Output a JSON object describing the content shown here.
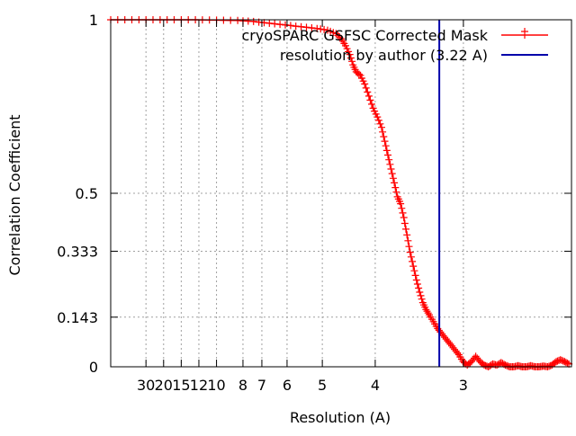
{
  "chart_data": {
    "type": "line",
    "xlabel": "Resolution (A)",
    "ylabel": "Correlation Coefficient",
    "x_scale": "reciprocal",
    "x_range_inv_angstrom": [
      0.0,
      0.4355
    ],
    "ylim": [
      0,
      1
    ],
    "grid": true,
    "legend_position": "top-right",
    "x_ticks": [
      {
        "resolution": 30,
        "label": "30"
      },
      {
        "resolution": 20,
        "label": "20"
      },
      {
        "resolution": 15,
        "label": "15"
      },
      {
        "resolution": 12,
        "label": "12"
      },
      {
        "resolution": 10,
        "label": "10"
      },
      {
        "resolution": 8,
        "label": "8"
      },
      {
        "resolution": 7,
        "label": "7"
      },
      {
        "resolution": 6,
        "label": "6"
      },
      {
        "resolution": 5,
        "label": "5"
      },
      {
        "resolution": 4,
        "label": "4"
      },
      {
        "resolution": 3,
        "label": "3"
      }
    ],
    "y_ticks": [
      {
        "value": 0,
        "label": "0"
      },
      {
        "value": 0.143,
        "label": "0.143"
      },
      {
        "value": 0.333,
        "label": "0.333"
      },
      {
        "value": 0.5,
        "label": "0.5"
      },
      {
        "value": 1,
        "label": "1"
      }
    ],
    "series": [
      {
        "name": "cryoSPARC GSFSC Corrected Mask",
        "color": "#ff0000",
        "marker": "plus",
        "x_unit": "1/A",
        "points": [
          [
            0.0,
            1.0
          ],
          [
            0.02,
            1.0
          ],
          [
            0.04,
            1.0
          ],
          [
            0.06,
            1.0
          ],
          [
            0.08,
            1.0
          ],
          [
            0.1,
            0.999
          ],
          [
            0.12,
            0.998
          ],
          [
            0.135,
            0.995
          ],
          [
            0.15,
            0.99
          ],
          [
            0.165,
            0.985
          ],
          [
            0.18,
            0.98
          ],
          [
            0.195,
            0.975
          ],
          [
            0.205,
            0.97
          ],
          [
            0.213,
            0.96
          ],
          [
            0.218,
            0.945
          ],
          [
            0.222,
            0.925
          ],
          [
            0.226,
            0.9
          ],
          [
            0.229,
            0.87
          ],
          [
            0.232,
            0.85
          ],
          [
            0.236,
            0.84
          ],
          [
            0.24,
            0.815
          ],
          [
            0.244,
            0.78
          ],
          [
            0.248,
            0.745
          ],
          [
            0.252,
            0.72
          ],
          [
            0.256,
            0.69
          ],
          [
            0.259,
            0.65
          ],
          [
            0.262,
            0.61
          ],
          [
            0.265,
            0.57
          ],
          [
            0.268,
            0.53
          ],
          [
            0.271,
            0.49
          ],
          [
            0.274,
            0.47
          ],
          [
            0.277,
            0.43
          ],
          [
            0.28,
            0.38
          ],
          [
            0.283,
            0.33
          ],
          [
            0.286,
            0.29
          ],
          [
            0.289,
            0.25
          ],
          [
            0.292,
            0.215
          ],
          [
            0.295,
            0.185
          ],
          [
            0.298,
            0.165
          ],
          [
            0.301,
            0.15
          ],
          [
            0.305,
            0.13
          ],
          [
            0.309,
            0.11
          ],
          [
            0.313,
            0.095
          ],
          [
            0.317,
            0.08
          ],
          [
            0.321,
            0.065
          ],
          [
            0.325,
            0.05
          ],
          [
            0.329,
            0.035
          ],
          [
            0.333,
            0.015
          ],
          [
            0.337,
            0.005
          ],
          [
            0.341,
            0.015
          ],
          [
            0.345,
            0.03
          ],
          [
            0.349,
            0.015
          ],
          [
            0.353,
            0.005
          ],
          [
            0.357,
            0.0
          ],
          [
            0.361,
            0.008
          ],
          [
            0.365,
            0.005
          ],
          [
            0.369,
            0.012
          ],
          [
            0.373,
            0.005
          ],
          [
            0.377,
            0.0
          ],
          [
            0.381,
            0.0
          ],
          [
            0.385,
            0.003
          ],
          [
            0.389,
            0.0
          ],
          [
            0.393,
            0.0
          ],
          [
            0.397,
            0.003
          ],
          [
            0.401,
            0.0
          ],
          [
            0.405,
            0.0
          ],
          [
            0.409,
            0.002
          ],
          [
            0.413,
            0.0
          ],
          [
            0.417,
            0.005
          ],
          [
            0.421,
            0.015
          ],
          [
            0.425,
            0.02
          ],
          [
            0.429,
            0.015
          ],
          [
            0.433,
            0.008
          ]
        ]
      },
      {
        "name": "resolution by author (3.22 A)",
        "color": "#0000aa",
        "type": "vertical-line",
        "resolution": 3.22
      }
    ]
  }
}
